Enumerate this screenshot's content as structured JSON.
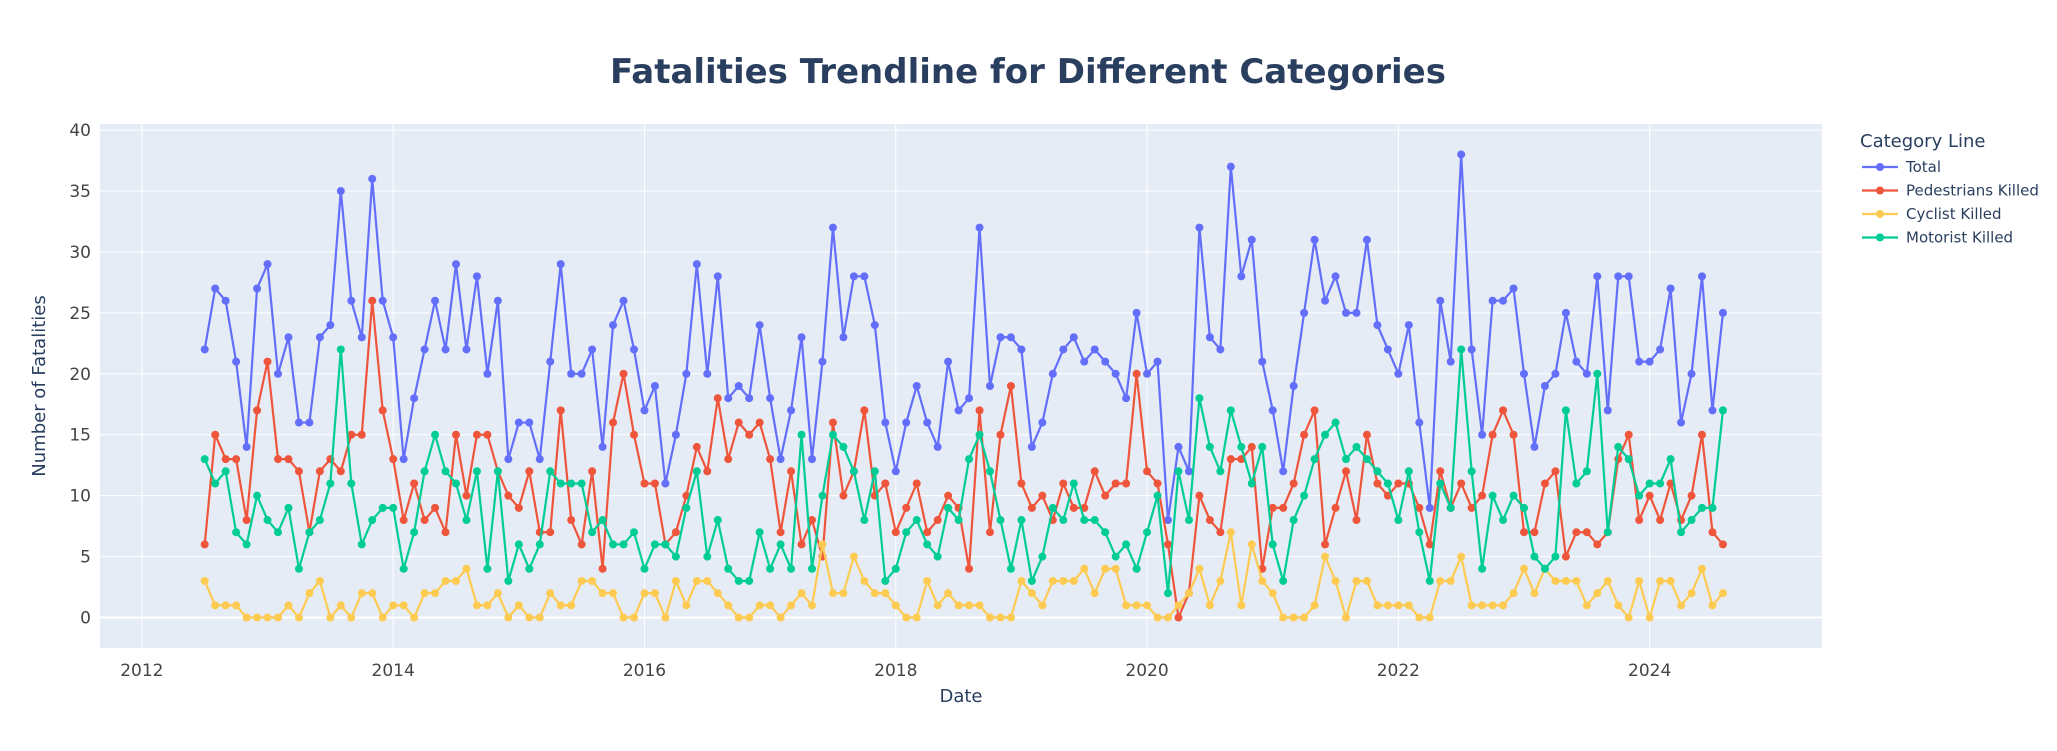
{
  "chart_data": {
    "type": "line",
    "title": "Fatalities Trendline for Different Categories",
    "xlabel": "Date",
    "ylabel": "Number of Fatalities",
    "legend_title": "Category Line",
    "legend_position": "right",
    "xlim": [
      "2011-09-01",
      "2025-05-15"
    ],
    "ylim": [
      -2.5,
      40.5
    ],
    "x_ticks": [
      "2012",
      "2014",
      "2016",
      "2018",
      "2020",
      "2022",
      "2024"
    ],
    "y_ticks": [
      0,
      5,
      10,
      15,
      20,
      25,
      30,
      35,
      40
    ],
    "grid": true,
    "x_start": "2012-07",
    "x_end": "2024-08",
    "x": [
      "2012-07",
      "2012-08",
      "2012-09",
      "2012-10",
      "2012-11",
      "2012-12",
      "2013-01",
      "2013-02",
      "2013-03",
      "2013-04",
      "2013-05",
      "2013-06",
      "2013-07",
      "2013-08",
      "2013-09",
      "2013-10",
      "2013-11",
      "2013-12",
      "2014-01",
      "2014-02",
      "2014-03",
      "2014-04",
      "2014-05",
      "2014-06",
      "2014-07",
      "2014-08",
      "2014-09",
      "2014-10",
      "2014-11",
      "2014-12",
      "2015-01",
      "2015-02",
      "2015-03",
      "2015-04",
      "2015-05",
      "2015-06",
      "2015-07",
      "2015-08",
      "2015-09",
      "2015-10",
      "2015-11",
      "2015-12",
      "2016-01",
      "2016-02",
      "2016-03",
      "2016-04",
      "2016-05",
      "2016-06",
      "2016-07",
      "2016-08",
      "2016-09",
      "2016-10",
      "2016-11",
      "2016-12",
      "2017-01",
      "2017-02",
      "2017-03",
      "2017-04",
      "2017-05",
      "2017-06",
      "2017-07",
      "2017-08",
      "2017-09",
      "2017-10",
      "2017-11",
      "2017-12",
      "2018-01",
      "2018-02",
      "2018-03",
      "2018-04",
      "2018-05",
      "2018-06",
      "2018-07",
      "2018-08",
      "2018-09",
      "2018-10",
      "2018-11",
      "2018-12",
      "2019-01",
      "2019-02",
      "2019-03",
      "2019-04",
      "2019-05",
      "2019-06",
      "2019-07",
      "2019-08",
      "2019-09",
      "2019-10",
      "2019-11",
      "2019-12",
      "2020-01",
      "2020-02",
      "2020-03",
      "2020-04",
      "2020-05",
      "2020-06",
      "2020-07",
      "2020-08",
      "2020-09",
      "2020-10",
      "2020-11",
      "2020-12",
      "2021-01",
      "2021-02",
      "2021-03",
      "2021-04",
      "2021-05",
      "2021-06",
      "2021-07",
      "2021-08",
      "2021-09",
      "2021-10",
      "2021-11",
      "2021-12",
      "2022-01",
      "2022-02",
      "2022-03",
      "2022-04",
      "2022-05",
      "2022-06",
      "2022-07",
      "2022-08",
      "2022-09",
      "2022-10",
      "2022-11",
      "2022-12",
      "2023-01",
      "2023-02",
      "2023-03",
      "2023-04",
      "2023-05",
      "2023-06",
      "2023-07",
      "2023-08",
      "2023-09",
      "2023-10",
      "2023-11",
      "2023-12",
      "2024-01",
      "2024-02",
      "2024-03",
      "2024-04",
      "2024-05",
      "2024-06",
      "2024-07",
      "2024-08"
    ],
    "series": [
      {
        "name": "Total",
        "color": "#636efa",
        "values": [
          22,
          27,
          26,
          21,
          14,
          27,
          29,
          20,
          23,
          16,
          16,
          23,
          24,
          35,
          26,
          23,
          36,
          26,
          23,
          13,
          18,
          22,
          26,
          22,
          29,
          22,
          28,
          20,
          26,
          13,
          16,
          16,
          13,
          21,
          29,
          20,
          20,
          22,
          14,
          24,
          26,
          22,
          17,
          19,
          11,
          15,
          20,
          29,
          20,
          28,
          18,
          19,
          18,
          24,
          18,
          13,
          17,
          23,
          13,
          21,
          32,
          23,
          28,
          28,
          24,
          16,
          12,
          16,
          19,
          16,
          14,
          21,
          17,
          18,
          32,
          19,
          23,
          23,
          22,
          14,
          16,
          20,
          22,
          23,
          21,
          22,
          21,
          20,
          18,
          25,
          20,
          21,
          8,
          14,
          12,
          32,
          23,
          22,
          37,
          28,
          31,
          21,
          17,
          12,
          19,
          25,
          31,
          26,
          28,
          25,
          25,
          31,
          24,
          22,
          20,
          24,
          16,
          9,
          26,
          21,
          38,
          22,
          15,
          26,
          26,
          27,
          20,
          14,
          19,
          20,
          25,
          21,
          20,
          28,
          17,
          28,
          28,
          21,
          21,
          22,
          27,
          16,
          20,
          28,
          17,
          25
        ]
      },
      {
        "name": "Pedestrians Killed",
        "color": "#ef553b",
        "values": [
          6,
          15,
          13,
          13,
          8,
          17,
          21,
          13,
          13,
          12,
          7,
          12,
          13,
          12,
          15,
          15,
          26,
          17,
          13,
          8,
          11,
          8,
          9,
          7,
          15,
          10,
          15,
          15,
          12,
          10,
          9,
          12,
          7,
          7,
          17,
          8,
          6,
          12,
          4,
          16,
          20,
          15,
          11,
          11,
          6,
          7,
          10,
          14,
          12,
          18,
          13,
          16,
          15,
          16,
          13,
          7,
          12,
          6,
          8,
          5,
          16,
          10,
          12,
          17,
          10,
          11,
          7,
          9,
          11,
          7,
          8,
          10,
          9,
          4,
          17,
          7,
          15,
          19,
          11,
          9,
          10,
          8,
          11,
          9,
          9,
          12,
          10,
          11,
          11,
          20,
          12,
          11,
          6,
          0,
          2,
          10,
          8,
          7,
          13,
          13,
          14,
          4,
          9,
          9,
          11,
          15,
          17,
          6,
          9,
          12,
          8,
          15,
          11,
          10,
          11,
          11,
          9,
          6,
          12,
          9,
          11,
          9,
          10,
          15,
          17,
          15,
          7,
          7,
          11,
          12,
          5,
          7,
          7,
          6,
          7,
          13,
          15,
          8,
          10,
          8,
          11,
          8,
          10,
          15,
          7,
          6
        ]
      },
      {
        "name": "Cyclist Killed",
        "color": "#fecb52",
        "values": [
          3,
          1,
          1,
          1,
          0,
          0,
          0,
          0,
          1,
          0,
          2,
          3,
          0,
          1,
          0,
          2,
          2,
          0,
          1,
          1,
          0,
          2,
          2,
          3,
          3,
          4,
          1,
          1,
          2,
          0,
          1,
          0,
          0,
          2,
          1,
          1,
          3,
          3,
          2,
          2,
          0,
          0,
          2,
          2,
          0,
          3,
          1,
          3,
          3,
          2,
          1,
          0,
          0,
          1,
          1,
          0,
          1,
          2,
          1,
          6,
          2,
          2,
          5,
          3,
          2,
          2,
          1,
          0,
          0,
          3,
          1,
          2,
          1,
          1,
          1,
          0,
          0,
          0,
          3,
          2,
          1,
          3,
          3,
          3,
          4,
          2,
          4,
          4,
          1,
          1,
          1,
          0,
          0,
          1,
          2,
          4,
          1,
          3,
          7,
          1,
          6,
          3,
          2,
          0,
          0,
          0,
          1,
          5,
          3,
          0,
          3,
          3,
          1,
          1,
          1,
          1,
          0,
          0,
          3,
          3,
          5,
          1,
          1,
          1,
          1,
          2,
          4,
          2,
          4,
          3,
          3,
          3,
          1,
          2,
          3,
          1,
          0,
          3,
          0,
          3,
          3,
          1,
          2,
          4,
          1,
          2
        ]
      },
      {
        "name": "Motorist Killed",
        "color": "#00cc96",
        "values": [
          13,
          11,
          12,
          7,
          6,
          10,
          8,
          7,
          9,
          4,
          7,
          8,
          11,
          22,
          11,
          6,
          8,
          9,
          9,
          4,
          7,
          12,
          15,
          12,
          11,
          8,
          12,
          4,
          12,
          3,
          6,
          4,
          6,
          12,
          11,
          11,
          11,
          7,
          8,
          6,
          6,
          7,
          4,
          6,
          6,
          5,
          9,
          12,
          5,
          8,
          4,
          3,
          3,
          7,
          4,
          6,
          4,
          15,
          4,
          10,
          15,
          14,
          12,
          8,
          12,
          3,
          4,
          7,
          8,
          6,
          5,
          9,
          8,
          13,
          15,
          12,
          8,
          4,
          8,
          3,
          5,
          9,
          8,
          11,
          8,
          8,
          7,
          5,
          6,
          4,
          7,
          10,
          2,
          12,
          8,
          18,
          14,
          12,
          17,
          14,
          11,
          14,
          6,
          3,
          8,
          10,
          13,
          15,
          16,
          13,
          14,
          13,
          12,
          11,
          8,
          12,
          7,
          3,
          11,
          9,
          22,
          12,
          4,
          10,
          8,
          10,
          9,
          5,
          4,
          5,
          17,
          11,
          12,
          20,
          7,
          14,
          13,
          10,
          11,
          11,
          13,
          7,
          8,
          9,
          9,
          17
        ]
      }
    ]
  }
}
